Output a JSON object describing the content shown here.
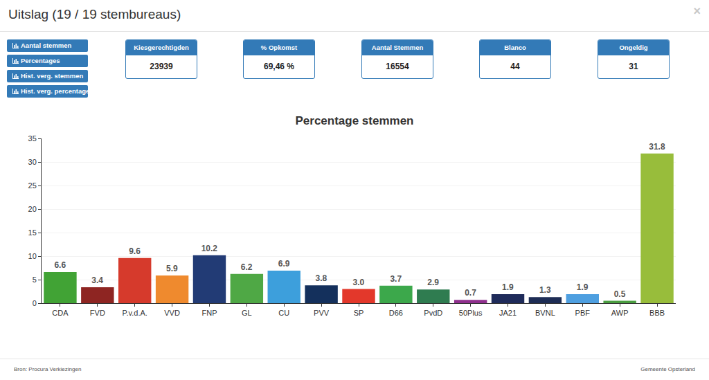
{
  "header": {
    "title": "Uitslag (19 / 19 stembureaus)",
    "close": "×"
  },
  "buttons": [
    "Aantal stemmen",
    "Percentages",
    "Hist. verg. stemmen",
    "Hist. verg. percentages"
  ],
  "stats": [
    {
      "label": "Kiesgerechtigden",
      "value": "23939"
    },
    {
      "label": "% Opkomst",
      "value": "69,46 %"
    },
    {
      "label": "Aantal Stemmen",
      "value": "16554"
    },
    {
      "label": "Blanco",
      "value": "44"
    },
    {
      "label": "Ongeldig",
      "value": "31"
    }
  ],
  "chart_data": {
    "type": "bar",
    "title": "Percentage stemmen",
    "categories": [
      "CDA",
      "FVD",
      "P.v.d.A.",
      "VVD",
      "FNP",
      "GL",
      "CU",
      "PVV",
      "SP",
      "D66",
      "PvdD",
      "50Plus",
      "JA21",
      "BVNL",
      "PBF",
      "AWP",
      "BBB"
    ],
    "values": [
      6.6,
      3.4,
      9.6,
      5.9,
      10.2,
      6.2,
      6.9,
      3.8,
      3.0,
      3.7,
      2.9,
      0.7,
      1.9,
      1.3,
      1.9,
      0.5,
      31.8
    ],
    "value_labels": [
      "6.6",
      "3.4",
      "9.6",
      "5.9",
      "10.2",
      "6.2",
      "6.9",
      "3.8",
      "3.0",
      "3.7",
      "2.9",
      "0.7",
      "1.9",
      "1.3",
      "1.9",
      "0.5",
      "31.8"
    ],
    "colors": [
      "#41a335",
      "#8e2522",
      "#d63a2c",
      "#ef8a2e",
      "#223b75",
      "#4fa845",
      "#3d9fdc",
      "#14305c",
      "#e3382b",
      "#3ca84b",
      "#2f7c50",
      "#8f2f8d",
      "#1f2b5a",
      "#1e2d55",
      "#4e9fe0",
      "#4a9e40",
      "#98bd3b"
    ],
    "ylim": [
      0,
      35
    ],
    "yticks": [
      0,
      5,
      10,
      15,
      20,
      25,
      30,
      35
    ],
    "grid": true,
    "data_labels": true
  },
  "footer": {
    "left": "Bron: Procura Verkiezingen",
    "right": "Gemeente Opsterland"
  }
}
